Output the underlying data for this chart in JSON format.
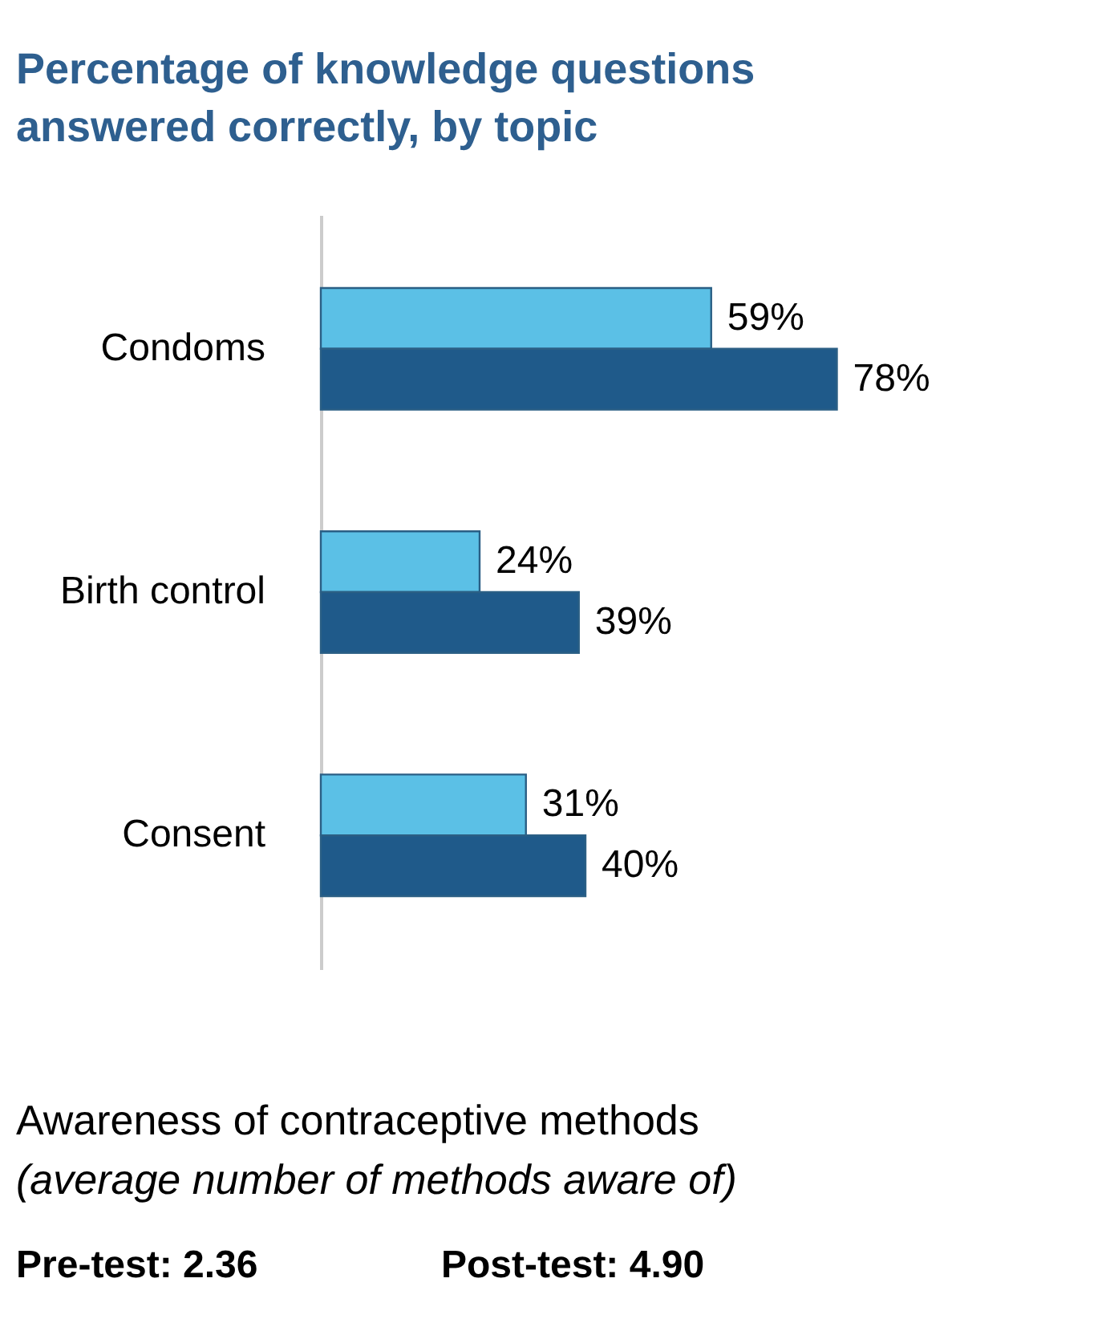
{
  "chart_data": {
    "type": "bar",
    "orientation": "horizontal",
    "title": "Percentage of knowledge questions answered correctly, by topic",
    "categories": [
      "Condoms",
      "Birth control",
      "Consent"
    ],
    "series": [
      {
        "color": "#5bc0e6",
        "values": [
          59,
          24,
          31
        ],
        "value_labels": [
          "59%",
          "24%",
          "31%"
        ]
      },
      {
        "color": "#1f5a8a",
        "values": [
          78,
          39,
          40
        ],
        "value_labels": [
          "78%",
          "39%",
          "40%"
        ]
      }
    ],
    "tick_labels": "y",
    "annotations": [
      "Awareness of contraceptive methods",
      "(average number of methods aware of)",
      "Pre-test: 2.36",
      "Post-test: 4.90"
    ]
  }
}
